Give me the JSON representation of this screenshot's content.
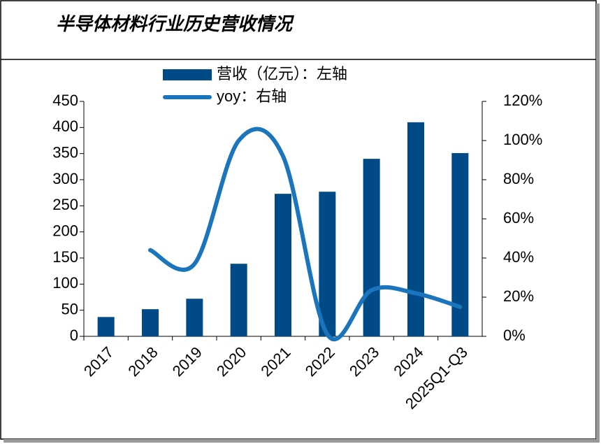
{
  "chart_data": {
    "type": "bar",
    "title": "半导体材料行业历史营收情况",
    "categories": [
      "2017",
      "2018",
      "2019",
      "2020",
      "2021",
      "2022",
      "2023",
      "2024",
      "2025Q1-Q3"
    ],
    "series": [
      {
        "name": "营收（亿元）：左轴",
        "type": "bar",
        "color": "#004a87",
        "values": [
          37,
          52,
          72,
          139,
          273,
          277,
          340,
          410,
          351
        ]
      },
      {
        "name": "yoy：右轴",
        "type": "line",
        "axis": "y2",
        "color": "#1b75bc",
        "values": [
          null,
          44,
          37,
          100,
          92,
          1,
          23.6,
          22,
          15
        ]
      }
    ],
    "ylim": [
      0,
      450
    ],
    "yticks": [
      0,
      50,
      100,
      150,
      200,
      250,
      300,
      350,
      400,
      450
    ],
    "y2lim": [
      0,
      120
    ],
    "y2ticks": [
      {
        "value": 0,
        "label": "0%"
      },
      {
        "value": 20,
        "label": "20%"
      },
      {
        "value": 40,
        "label": "40%"
      },
      {
        "value": 60,
        "label": "60%"
      },
      {
        "value": 80,
        "label": "80%"
      },
      {
        "value": 100,
        "label": "100%"
      },
      {
        "value": 120,
        "label": "120%"
      }
    ],
    "legend": "top"
  }
}
